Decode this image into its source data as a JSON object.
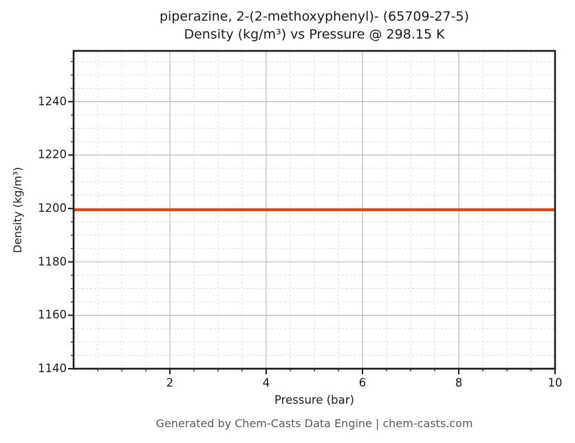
{
  "figure": {
    "title_line1": "piperazine, 2-(2-methoxyphenyl)- (65709-27-5)",
    "title_line2": "Density (kg/m³) vs Pressure @ 298.15 K",
    "footer": "Generated by Chem-Casts Data Engine | chem-casts.com"
  },
  "chart_data": {
    "type": "line",
    "title": "piperazine, 2-(2-methoxyphenyl)- (65709-27-5) Density (kg/m³) vs Pressure @ 298.15 K",
    "xlabel": "Pressure (bar)",
    "ylabel": "Density (kg/m³)",
    "xlim": [
      0,
      10
    ],
    "ylim": [
      1140,
      1259
    ],
    "xticks": [
      2,
      4,
      6,
      8,
      10
    ],
    "yticks": [
      1140,
      1160,
      1180,
      1200,
      1220,
      1240
    ],
    "x_minor_step": 0.5,
    "y_minor_step": 5,
    "grid": true,
    "legend": "none",
    "series": [
      {
        "name": "Density",
        "x": [
          0,
          10
        ],
        "y": [
          1199.5,
          1199.5
        ],
        "note": "constant density ≈ 1199.5 kg/m³ across 0–10 bar at 298.15 K"
      }
    ]
  },
  "colors": {
    "line": "#d14e21",
    "spine": "#1a1a1a",
    "grid_major": "#b8b8b8",
    "grid_minor": "#dcdcdc",
    "tick": "#1a1a1a",
    "footer_text": "#595959",
    "background": "#ffffff"
  }
}
